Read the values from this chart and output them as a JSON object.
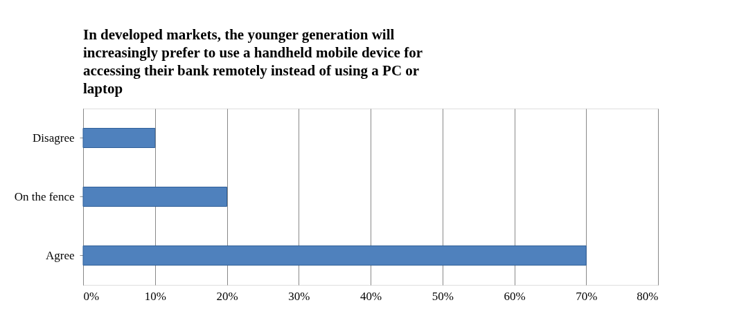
{
  "chart_data": {
    "type": "bar",
    "orientation": "horizontal",
    "title": "In developed markets, the younger generation will increasingly prefer to use a handheld mobile device for accessing their bank remotely instead of using a PC or laptop",
    "categories": [
      "Disagree",
      "On the fence",
      "Agree"
    ],
    "values": [
      10,
      20,
      70
    ],
    "color": "#4f81bd",
    "xlim": [
      0,
      80
    ],
    "xticks": [
      {
        "value": 0,
        "label": "0%"
      },
      {
        "value": 10,
        "label": "10%"
      },
      {
        "value": 20,
        "label": "20%"
      },
      {
        "value": 30,
        "label": "30%"
      },
      {
        "value": 40,
        "label": "40%"
      },
      {
        "value": 50,
        "label": "50%"
      },
      {
        "value": 60,
        "label": "60%"
      },
      {
        "value": 70,
        "label": "70%"
      },
      {
        "value": 80,
        "label": "80%"
      }
    ],
    "grid": "x"
  }
}
